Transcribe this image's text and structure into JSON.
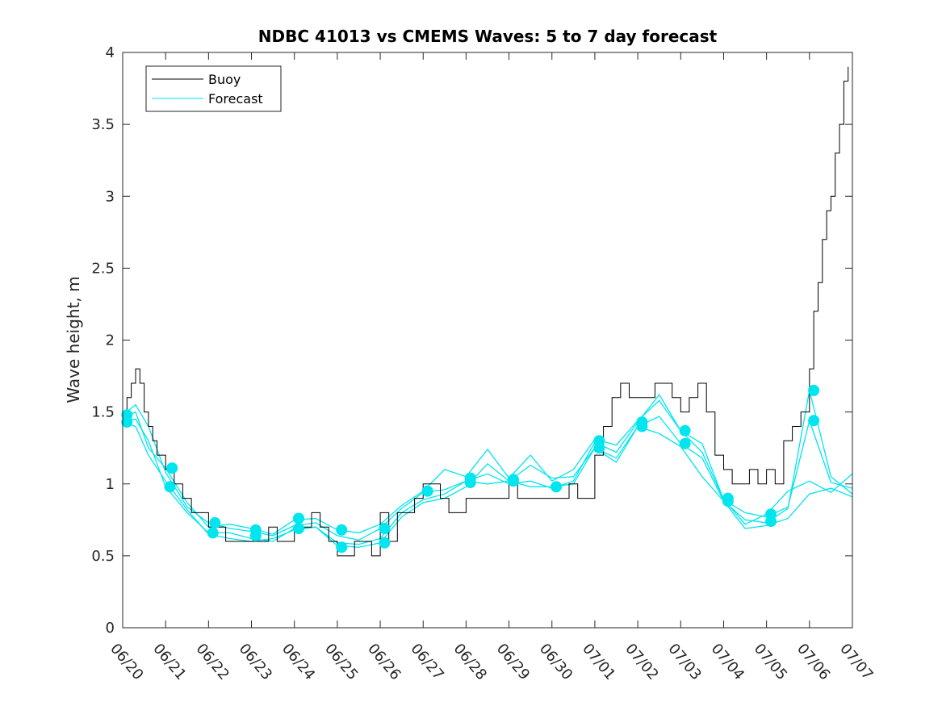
{
  "chart_data": {
    "type": "line",
    "title": "NDBC 41013 vs CMEMS Waves: 5 to 7 day forecast",
    "ylabel": "Wave height, m",
    "xlabel": "",
    "xlim": [
      0,
      17
    ],
    "ylim": [
      0,
      4
    ],
    "x_tick_labels": [
      "06/20",
      "06/21",
      "06/22",
      "06/23",
      "06/24",
      "06/25",
      "06/26",
      "06/27",
      "06/28",
      "06/29",
      "06/30",
      "07/01",
      "07/02",
      "07/03",
      "07/04",
      "07/05",
      "07/06",
      "07/07"
    ],
    "y_tick_labels": [
      "0",
      "0.5",
      "1",
      "1.5",
      "2",
      "2.5",
      "3",
      "3.5",
      "4"
    ],
    "grid": false,
    "legend_position": "top-left",
    "legend": [
      "Buoy",
      "Forecast"
    ],
    "colors": {
      "buoy": "#000000",
      "forecast": "#00e5ee"
    },
    "buoy": {
      "x": [
        0,
        0.1,
        0.2,
        0.3,
        0.4,
        0.5,
        0.6,
        0.7,
        0.8,
        0.9,
        1.0,
        1.1,
        1.2,
        1.3,
        1.4,
        1.5,
        1.6,
        1.7,
        1.8,
        1.9,
        2.0,
        2.2,
        2.4,
        2.6,
        2.8,
        3.0,
        3.2,
        3.4,
        3.6,
        3.8,
        4.0,
        4.2,
        4.4,
        4.6,
        4.8,
        5.0,
        5.2,
        5.4,
        5.6,
        5.8,
        6.0,
        6.2,
        6.4,
        6.6,
        6.8,
        7.0,
        7.2,
        7.4,
        7.6,
        7.8,
        8.0,
        8.2,
        8.4,
        8.6,
        8.8,
        9.0,
        9.2,
        9.4,
        9.6,
        9.8,
        10.0,
        10.2,
        10.4,
        10.6,
        10.8,
        11.0,
        11.2,
        11.4,
        11.6,
        11.8,
        12.0,
        12.2,
        12.4,
        12.6,
        12.8,
        13.0,
        13.2,
        13.4,
        13.6,
        13.8,
        14.0,
        14.2,
        14.4,
        14.6,
        14.8,
        15.0,
        15.2,
        15.4,
        15.6,
        15.8,
        16.0,
        16.1,
        16.2,
        16.3,
        16.4,
        16.5,
        16.6,
        16.7,
        16.8,
        16.9
      ],
      "y": [
        1.5,
        1.6,
        1.7,
        1.8,
        1.7,
        1.5,
        1.4,
        1.3,
        1.2,
        1.2,
        1.1,
        1.1,
        1.0,
        1.0,
        0.9,
        0.9,
        0.8,
        0.8,
        0.8,
        0.8,
        0.7,
        0.7,
        0.6,
        0.6,
        0.6,
        0.6,
        0.6,
        0.7,
        0.6,
        0.6,
        0.7,
        0.7,
        0.8,
        0.7,
        0.6,
        0.5,
        0.5,
        0.6,
        0.6,
        0.5,
        0.8,
        0.6,
        0.8,
        0.8,
        0.9,
        1.0,
        1.0,
        0.9,
        0.8,
        0.8,
        0.9,
        0.9,
        0.9,
        0.9,
        0.9,
        1.0,
        0.9,
        0.9,
        0.9,
        0.9,
        0.9,
        0.9,
        1.0,
        0.9,
        0.9,
        1.2,
        1.4,
        1.6,
        1.7,
        1.6,
        1.6,
        1.6,
        1.7,
        1.7,
        1.6,
        1.5,
        1.6,
        1.7,
        1.5,
        1.2,
        1.1,
        1.0,
        1.0,
        1.1,
        1.0,
        1.1,
        1.0,
        1.3,
        1.4,
        1.5,
        1.8,
        2.2,
        2.4,
        2.7,
        2.9,
        3.0,
        3.3,
        3.5,
        3.8,
        3.9
      ]
    },
    "series": [
      {
        "name": "Forecast",
        "x": [
          0,
          0.3,
          0.6,
          1.0,
          1.5,
          2.0,
          2.5,
          3.0,
          3.5,
          4.0,
          4.5,
          5.0,
          5.5,
          6.0,
          6.5,
          7.0,
          7.5,
          8.0,
          8.5,
          9.0,
          9.5,
          10.0,
          10.5,
          11.0,
          11.5,
          12.0,
          12.5,
          13.0,
          13.5,
          14.0,
          14.5,
          15.0,
          15.5,
          16.0,
          16.5,
          17.0
        ],
        "y": [
          1.48,
          1.55,
          1.4,
          1.08,
          0.84,
          0.73,
          0.69,
          0.67,
          0.64,
          0.71,
          0.73,
          0.64,
          0.61,
          0.69,
          0.83,
          0.94,
          0.96,
          1.02,
          1.07,
          1.0,
          1.02,
          0.97,
          1.02,
          1.29,
          1.22,
          1.43,
          1.62,
          1.37,
          1.28,
          0.89,
          0.8,
          0.77,
          0.84,
          1.44,
          1.01,
          0.97
        ]
      },
      {
        "x": [
          0,
          0.3,
          0.6,
          1.0,
          1.5,
          2.0,
          2.5,
          3.0,
          3.5,
          4.0,
          4.5,
          5.0,
          5.5,
          6.0,
          6.5,
          7.0,
          7.5,
          8.0,
          8.5,
          9.0,
          9.5,
          10.0,
          10.5,
          11.0,
          11.5,
          12.0,
          12.5,
          13.0,
          13.5,
          14.0,
          14.5,
          15.0,
          15.5,
          16.0,
          16.5,
          17.0
        ],
        "y": [
          1.44,
          1.45,
          1.3,
          0.98,
          0.8,
          0.66,
          0.66,
          0.62,
          0.6,
          0.69,
          0.7,
          0.57,
          0.56,
          0.59,
          0.77,
          0.87,
          0.9,
          0.98,
          1.14,
          1.02,
          1.13,
          1.04,
          1.05,
          1.25,
          1.18,
          1.4,
          1.47,
          1.28,
          1.18,
          0.88,
          0.75,
          0.73,
          0.83,
          1.65,
          1.05,
          0.93
        ]
      },
      {
        "x": [
          0,
          0.3,
          0.6,
          1.0,
          1.5,
          2.0,
          2.5,
          3.0,
          3.5,
          4.0,
          4.5,
          5.0,
          5.5,
          6.0,
          6.5,
          7.0,
          7.5,
          8.0,
          8.5,
          9.0,
          9.5,
          10.0,
          10.5,
          11.0,
          11.5,
          12.0,
          12.5,
          13.0,
          13.5,
          14.0,
          14.5,
          15.0,
          15.5,
          16.0,
          16.5,
          17.0
        ],
        "y": [
          1.46,
          1.5,
          1.25,
          1.11,
          0.87,
          0.7,
          0.72,
          0.69,
          0.65,
          0.75,
          0.76,
          0.68,
          0.66,
          0.72,
          0.85,
          0.95,
          1.1,
          1.05,
          1.24,
          1.04,
          1.2,
          1.02,
          1.1,
          1.31,
          1.27,
          1.44,
          1.58,
          1.37,
          1.22,
          0.89,
          0.72,
          0.79,
          0.95,
          1.02,
          0.94,
          1.07
        ]
      },
      {
        "x": [
          0,
          0.3,
          0.6,
          1.0,
          1.5,
          2.0,
          2.5,
          3.0,
          3.5,
          4.0,
          4.5,
          5.0,
          5.5,
          6.0,
          6.5,
          7.0,
          7.5,
          8.0,
          8.5,
          9.0,
          9.5,
          10.0,
          10.5,
          11.0,
          11.5,
          12.0,
          12.5,
          13.0,
          13.5,
          14.0,
          14.5,
          15.0,
          15.5,
          16.0,
          16.5,
          17.0
        ],
        "y": [
          1.43,
          1.4,
          1.2,
          1.02,
          0.82,
          0.65,
          0.62,
          0.6,
          0.62,
          0.68,
          0.7,
          0.59,
          0.58,
          0.62,
          0.8,
          0.89,
          0.93,
          1.02,
          1.0,
          1.02,
          0.98,
          0.98,
          1.0,
          1.25,
          1.15,
          1.4,
          1.35,
          1.26,
          1.05,
          0.88,
          0.69,
          0.71,
          0.76,
          0.93,
          0.97,
          0.91
        ]
      }
    ],
    "markers": {
      "x": [
        0.1,
        0.1,
        1.1,
        1.15,
        2.1,
        2.15,
        3.1,
        3.1,
        4.1,
        4.1,
        5.1,
        5.1,
        6.1,
        6.1,
        7.1,
        8.1,
        8.1,
        9.1,
        9.1,
        10.1,
        11.1,
        11.1,
        12.1,
        12.1,
        13.1,
        13.1,
        14.1,
        14.1,
        15.1,
        15.1,
        16.1,
        16.1
      ],
      "y": [
        1.48,
        1.43,
        0.98,
        1.11,
        0.66,
        0.73,
        0.64,
        0.68,
        0.76,
        0.69,
        0.68,
        0.56,
        0.69,
        0.59,
        0.95,
        1.04,
        1.01,
        1.03,
        1.02,
        0.98,
        1.3,
        1.25,
        1.43,
        1.4,
        1.37,
        1.28,
        0.9,
        0.88,
        0.79,
        0.74,
        1.65,
        1.44
      ]
    }
  }
}
